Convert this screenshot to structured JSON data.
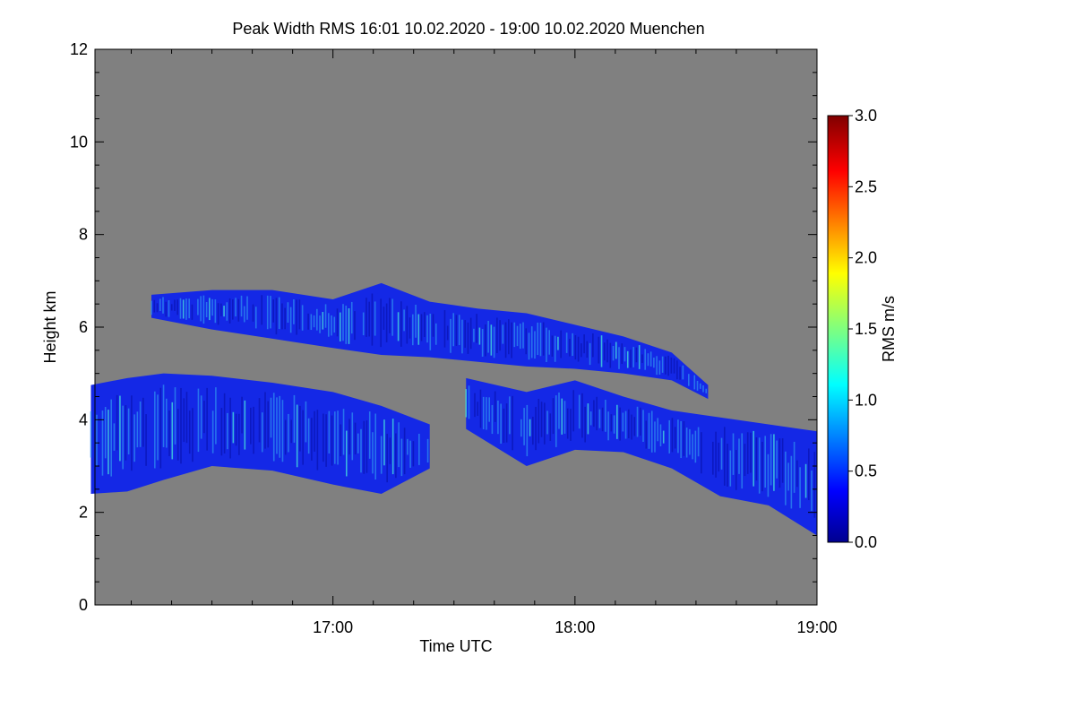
{
  "chart_data": {
    "type": "heatmap",
    "title": "Peak Width RMS   16:01 10.02.2020 - 19:00 10.02.2020 Muenchen",
    "xlabel": "Time UTC",
    "ylabel": "Height km",
    "xlim": [
      "16:01",
      "19:00"
    ],
    "ylim": [
      0,
      12
    ],
    "x_ticks": [
      "17:00",
      "18:00",
      "19:00"
    ],
    "y_ticks": [
      "0",
      "2",
      "4",
      "6",
      "8",
      "10",
      "12"
    ],
    "colorbar": {
      "label": "RMS m/s",
      "range": [
        0.0,
        3.0
      ],
      "ticks": [
        "0.0",
        "0.5",
        "1.0",
        "1.5",
        "2.0",
        "2.5",
        "3.0"
      ],
      "colormap": "jet"
    },
    "colors": {
      "no_data": "#808080",
      "band": "#1428e6",
      "band_dark": "#0a14b4",
      "band_light": "#2d8cf0",
      "highlight": "#46e6dc"
    },
    "echo_layers": [
      {
        "name": "upper",
        "time_h": [
          16.25,
          16.5,
          16.75,
          17.0,
          17.2,
          17.4,
          17.6,
          17.8,
          18.0,
          18.2,
          18.4,
          18.55
        ],
        "top_km": [
          6.7,
          6.8,
          6.8,
          6.6,
          6.95,
          6.55,
          6.4,
          6.3,
          6.05,
          5.8,
          5.45,
          4.75
        ],
        "bottom_km": [
          6.2,
          5.95,
          5.75,
          5.55,
          5.4,
          5.35,
          5.25,
          5.15,
          5.1,
          5.0,
          4.85,
          4.45
        ],
        "typical_rms_ms": 0.4
      },
      {
        "name": "lower",
        "time_h": [
          16.0,
          16.15,
          16.3,
          16.5,
          16.75,
          17.0,
          17.2,
          17.4
        ],
        "top_km": [
          4.75,
          4.9,
          5.0,
          4.95,
          4.8,
          4.6,
          4.3,
          3.9
        ],
        "bottom_km": [
          2.4,
          2.45,
          2.7,
          3.0,
          2.9,
          2.6,
          2.4,
          2.95
        ],
        "typical_rms_ms": 0.35
      },
      {
        "name": "descending",
        "time_h": [
          17.55,
          17.8,
          18.0,
          18.2,
          18.4,
          18.6,
          18.8,
          19.0
        ],
        "top_km": [
          4.9,
          4.6,
          4.85,
          4.5,
          4.2,
          4.05,
          3.9,
          3.75
        ],
        "bottom_km": [
          3.8,
          3.0,
          3.35,
          3.3,
          2.95,
          2.35,
          2.15,
          1.5
        ],
        "typical_rms_ms": 0.3
      }
    ]
  }
}
